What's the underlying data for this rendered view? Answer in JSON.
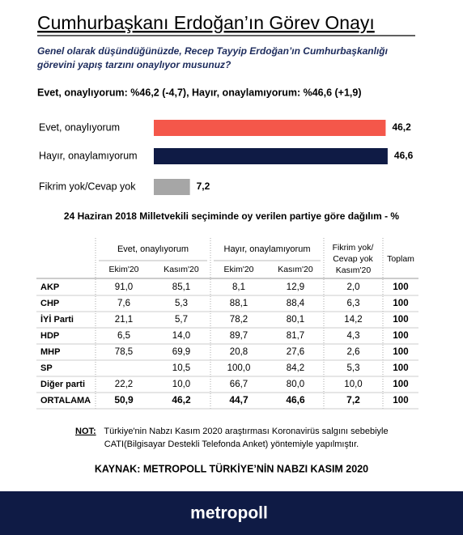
{
  "title": "Cumhurbaşkanı Erdoğan’ın Görev Onayı",
  "question": [
    "Genel olarak düşündüğünüzde, Recep Tayyip Erdoğan’ın Cumhurbaşkanlığı",
    "görevini yapış tarzını onaylıyor musunuz?"
  ],
  "summary": "Evet, onaylıyorum: %46,2 (-4,7), Hayır, onaylamıyorum: %46,6 (+1,9)",
  "chart_data": {
    "type": "bar",
    "orientation": "horizontal",
    "categories": [
      "Evet, onaylıyorum",
      "Hayır, onaylamıyorum",
      "Fikrim yok/Cevap yok"
    ],
    "values": [
      46.2,
      46.6,
      7.2
    ],
    "value_labels": [
      "46,2",
      "46,6",
      "7,2"
    ],
    "colors": [
      "#f4574a",
      "#0f1b45",
      "#a6a6a6"
    ]
  },
  "table": {
    "title": "24 Haziran 2018 Milletvekili seçiminde oy verilen partiye göre dağılım - %",
    "group_headers": [
      "Evet, onaylıyorum",
      "Hayır, onaylamıyorum"
    ],
    "fikrim_header": [
      "Fikrim yok/",
      "Cevap yok"
    ],
    "sub_headers": [
      "Ekim'20",
      "Kasım'20",
      "Ekim'20",
      "Kasım'20",
      "Kasım'20"
    ],
    "total_header": "Toplam",
    "rows": [
      {
        "label": "AKP",
        "cells": [
          "91,0",
          "85,1",
          "8,1",
          "12,9",
          "2,0"
        ],
        "total": "100"
      },
      {
        "label": "CHP",
        "cells": [
          "7,6",
          "5,3",
          "88,1",
          "88,4",
          "6,3"
        ],
        "total": "100"
      },
      {
        "label": "İYİ Parti",
        "cells": [
          "21,1",
          "5,7",
          "78,2",
          "80,1",
          "14,2"
        ],
        "total": "100"
      },
      {
        "label": "HDP",
        "cells": [
          "6,5",
          "14,0",
          "89,7",
          "81,7",
          "4,3"
        ],
        "total": "100"
      },
      {
        "label": "MHP",
        "cells": [
          "78,5",
          "69,9",
          "20,8",
          "27,6",
          "2,6"
        ],
        "total": "100"
      },
      {
        "label": "SP",
        "cells": [
          null,
          "10,5",
          "100,0",
          "84,2",
          "5,3"
        ],
        "total": "100"
      },
      {
        "label": "Diğer parti",
        "cells": [
          "22,2",
          "10,0",
          "66,7",
          "80,0",
          "10,0"
        ],
        "total": "100"
      },
      {
        "label": "ORTALAMA",
        "cells": [
          "50,9",
          "46,2",
          "44,7",
          "46,6",
          "7,2"
        ],
        "total": "100"
      }
    ]
  },
  "note_label": "NOT:",
  "note_lines": [
    "Türkiye'nin Nabzı Kasım 2020 araştırması Koronavirüs salgını sebebiyle",
    "CATI(Bilgisayar Destekli Telefonda Anket) yöntemiyle yapılmıştır."
  ],
  "source": "KAYNAK: METROPOLL TÜRKİYE’NİN NABZI KASIM 2020",
  "brand": "metropoll"
}
